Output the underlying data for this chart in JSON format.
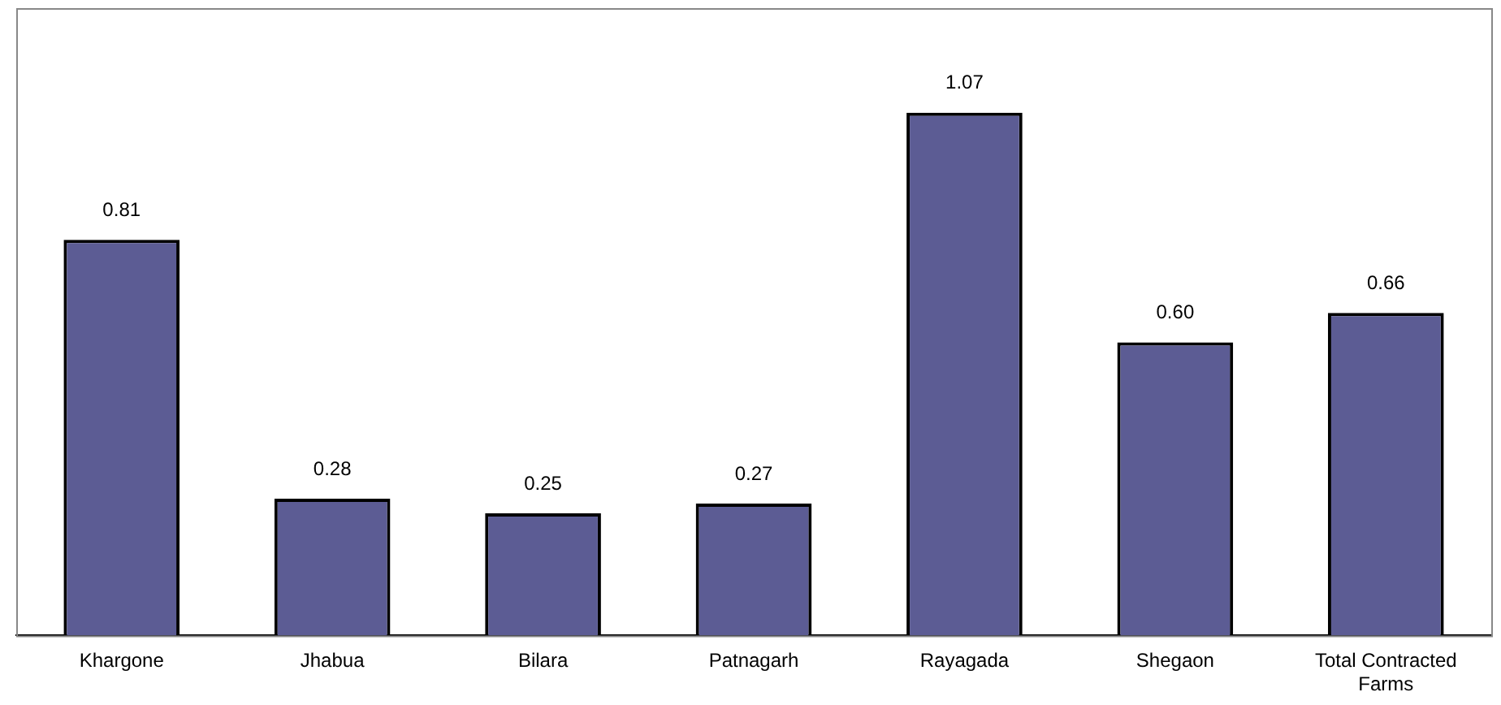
{
  "chart_data": {
    "type": "bar",
    "categories": [
      "Khargone",
      "Jhabua",
      "Bilara",
      "Patnagarh",
      "Rayagada",
      "Shegaon",
      "Total Contracted Farms"
    ],
    "values": [
      0.81,
      0.28,
      0.25,
      0.27,
      1.07,
      0.6,
      0.66
    ],
    "value_labels": [
      "0.81",
      "0.28",
      "0.25",
      "0.27",
      "1.07",
      "0.60",
      "0.66"
    ],
    "color": "#5c5c94",
    "grid": false,
    "legend": false
  }
}
